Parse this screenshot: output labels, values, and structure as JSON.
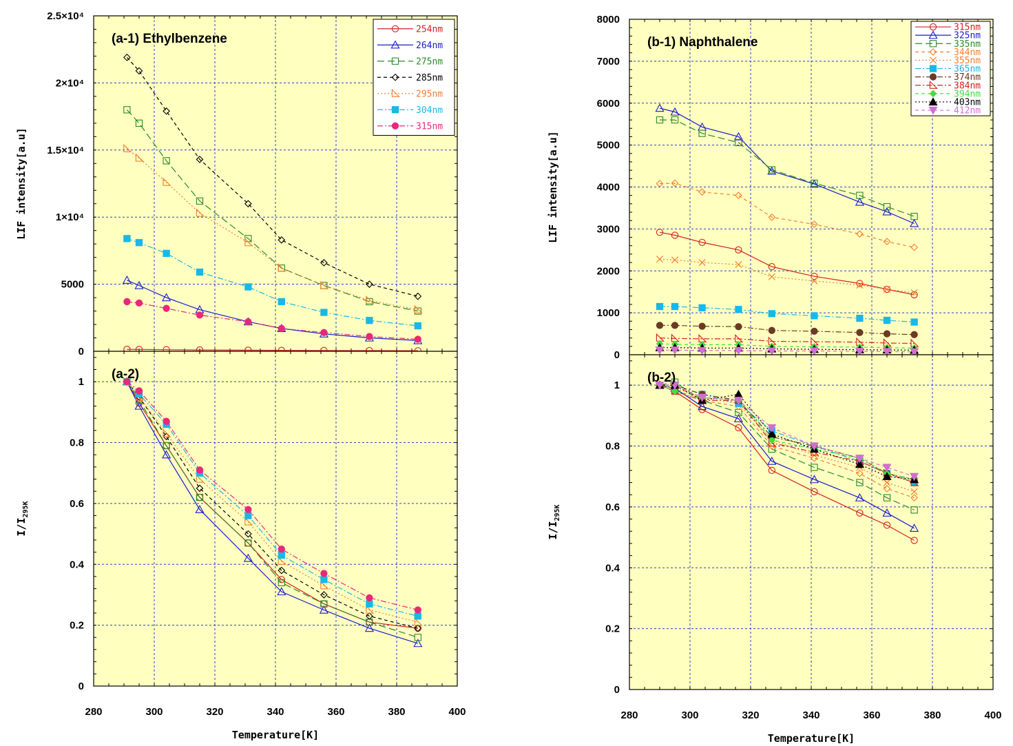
{
  "chart_data": [
    {
      "type": "line",
      "panel": "a-1",
      "title": "(a-1) Ethylbenzene",
      "xlabel": "Temperature[K]",
      "ylabel": "LIF intensity[a.u]",
      "xlim": [
        280,
        400
      ],
      "ylim": [
        0,
        25000
      ],
      "xticks": [
        "280",
        "300",
        "320",
        "340",
        "360",
        "380",
        "400"
      ],
      "yticks": [
        "0",
        "5000",
        "1×10⁴",
        "1.5×10⁴",
        "2×10⁴",
        "2.5×10⁴"
      ],
      "grid": true,
      "legend_position": "top-right",
      "x": [
        291,
        295,
        304,
        315,
        331,
        342,
        356,
        371,
        387
      ],
      "series": [
        {
          "name": "254nm",
          "color": "#d42020",
          "marker": "circle-open",
          "dash": "solid",
          "values": [
            150,
            140,
            120,
            100,
            80,
            70,
            60,
            50,
            40
          ]
        },
        {
          "name": "264nm",
          "color": "#1a1ad0",
          "marker": "triangle-open",
          "dash": "solid",
          "values": [
            5300,
            4900,
            4000,
            3100,
            2200,
            1700,
            1300,
            1000,
            800
          ]
        },
        {
          "name": "275nm",
          "color": "#2a8a2a",
          "marker": "square-open",
          "dash": "long-dash",
          "values": [
            18000,
            17000,
            14200,
            11200,
            8400,
            6200,
            4900,
            3700,
            3000
          ]
        },
        {
          "name": "285nm",
          "color": "#000000",
          "marker": "diamond-open",
          "dash": "dash",
          "values": [
            21900,
            20900,
            17900,
            14300,
            11000,
            8300,
            6600,
            5000,
            4100
          ]
        },
        {
          "name": "295nm",
          "color": "#f08030",
          "marker": "triangle-right-open",
          "dash": "dot",
          "values": [
            15100,
            14400,
            12600,
            10300,
            8100,
            6200,
            4900,
            3800,
            3100
          ]
        },
        {
          "name": "304nm",
          "color": "#18b8e8",
          "marker": "square-filled",
          "dash": "dash-dot",
          "values": [
            8400,
            8100,
            7300,
            5900,
            4800,
            3700,
            2900,
            2300,
            1900
          ]
        },
        {
          "name": "315nm",
          "color": "#e8287a",
          "marker": "circle-filled",
          "dash": "dash-dot",
          "values": [
            3700,
            3600,
            3200,
            2700,
            2200,
            1700,
            1400,
            1100,
            900
          ]
        }
      ]
    },
    {
      "type": "line",
      "panel": "a-2",
      "title": "(a-2)",
      "xlabel": "Temperature[K]",
      "ylabel": "I/I295K",
      "xlim": [
        280,
        400
      ],
      "ylim": [
        0,
        1.1
      ],
      "xticks": [
        "280",
        "300",
        "320",
        "340",
        "360",
        "380",
        "400"
      ],
      "yticks": [
        "0",
        "0.2",
        "0.4",
        "0.6",
        "0.8",
        "1"
      ],
      "grid": true,
      "x": [
        291,
        295,
        304,
        315,
        331,
        342,
        356,
        371,
        387
      ],
      "series": [
        {
          "name": "254nm",
          "values": [
            1.0,
            0.93,
            0.79,
            0.62,
            0.47,
            0.35,
            0.27,
            0.21,
            0.19
          ]
        },
        {
          "name": "264nm",
          "values": [
            1.0,
            0.92,
            0.76,
            0.58,
            0.42,
            0.31,
            0.25,
            0.19,
            0.14
          ]
        },
        {
          "name": "275nm",
          "values": [
            1.0,
            0.94,
            0.79,
            0.62,
            0.47,
            0.34,
            0.27,
            0.21,
            0.16
          ]
        },
        {
          "name": "285nm",
          "values": [
            1.0,
            0.95,
            0.82,
            0.65,
            0.5,
            0.38,
            0.3,
            0.23,
            0.19
          ]
        },
        {
          "name": "295nm",
          "values": [
            1.0,
            0.95,
            0.83,
            0.68,
            0.54,
            0.41,
            0.33,
            0.25,
            0.21
          ]
        },
        {
          "name": "304nm",
          "values": [
            1.0,
            0.96,
            0.86,
            0.7,
            0.56,
            0.43,
            0.35,
            0.27,
            0.23
          ]
        },
        {
          "name": "315nm",
          "values": [
            1.0,
            0.97,
            0.87,
            0.71,
            0.58,
            0.45,
            0.37,
            0.29,
            0.25
          ]
        }
      ]
    },
    {
      "type": "line",
      "panel": "b-1",
      "title": "(b-1) Naphthalene",
      "xlabel": "Temperature[K]",
      "ylabel": "LIF intensity[a.u]",
      "xlim": [
        280,
        400
      ],
      "ylim": [
        0,
        8000
      ],
      "xticks": [
        "280",
        "300",
        "320",
        "340",
        "360",
        "380",
        "400"
      ],
      "yticks": [
        "0",
        "1000",
        "2000",
        "3000",
        "4000",
        "5000",
        "6000",
        "7000",
        "8000"
      ],
      "grid": true,
      "legend_position": "top-right",
      "x": [
        290,
        295,
        304,
        316,
        327,
        341,
        356,
        365,
        374
      ],
      "series": [
        {
          "name": "315nm",
          "color": "#d42020",
          "marker": "circle-open",
          "dash": "solid",
          "values": [
            2920,
            2850,
            2680,
            2500,
            2100,
            1870,
            1700,
            1560,
            1430
          ]
        },
        {
          "name": "325nm",
          "color": "#1a1ad0",
          "marker": "triangle-open",
          "dash": "solid",
          "values": [
            5880,
            5790,
            5430,
            5200,
            4380,
            4070,
            3640,
            3410,
            3130
          ]
        },
        {
          "name": "335nm",
          "color": "#2a8a2a",
          "marker": "square-open",
          "dash": "long-dash",
          "values": [
            5600,
            5600,
            5280,
            5060,
            4410,
            4090,
            3800,
            3530,
            3300
          ]
        },
        {
          "name": "344nm",
          "color": "#f08030",
          "marker": "diamond-open",
          "dash": "dash",
          "values": [
            4080,
            4090,
            3880,
            3800,
            3280,
            3110,
            2880,
            2700,
            2560
          ]
        },
        {
          "name": "355nm",
          "color": "#f08030",
          "marker": "x",
          "dash": "dot",
          "values": [
            2280,
            2260,
            2200,
            2150,
            1860,
            1760,
            1660,
            1560,
            1480
          ]
        },
        {
          "name": "365nm",
          "color": "#18b8e8",
          "marker": "square-filled",
          "dash": "dash-dot",
          "values": [
            1150,
            1150,
            1120,
            1080,
            980,
            930,
            870,
            820,
            780
          ]
        },
        {
          "name": "374nm",
          "color": "#6b3a24",
          "marker": "circle-filled",
          "dash": "dash-dot",
          "values": [
            700,
            700,
            680,
            670,
            580,
            560,
            530,
            500,
            480
          ]
        },
        {
          "name": "384nm",
          "color": "#d42020",
          "marker": "triangle-right-open",
          "dash": "dash-dot",
          "values": [
            400,
            390,
            380,
            380,
            320,
            310,
            300,
            280,
            270
          ]
        },
        {
          "name": "394nm",
          "color": "#40e040",
          "marker": "diamond-filled",
          "dash": "dash",
          "values": [
            260,
            250,
            240,
            240,
            200,
            190,
            180,
            170,
            160
          ]
        },
        {
          "name": "403nm",
          "color": "#000000",
          "marker": "triangle-filled",
          "dash": "dot",
          "values": [
            170,
            170,
            160,
            160,
            140,
            130,
            120,
            115,
            110
          ]
        },
        {
          "name": "412nm",
          "color": "#d070d0",
          "marker": "triangle-down-filled",
          "dash": "dash",
          "values": [
            110,
            110,
            100,
            100,
            90,
            90,
            80,
            75,
            70
          ]
        }
      ]
    },
    {
      "type": "line",
      "panel": "b-2",
      "title": "(b-2)",
      "xlabel": "Temperature[K]",
      "ylabel": "I/I295K",
      "xlim": [
        280,
        400
      ],
      "ylim": [
        0,
        1.1
      ],
      "xticks": [
        "280",
        "300",
        "320",
        "340",
        "360",
        "380",
        "400"
      ],
      "yticks": [
        "0",
        "0.2",
        "0.4",
        "0.6",
        "0.8",
        "1"
      ],
      "grid": true,
      "x": [
        290,
        295,
        304,
        316,
        327,
        341,
        356,
        365,
        374
      ],
      "series": [
        {
          "name": "315nm",
          "values": [
            1.0,
            0.98,
            0.92,
            0.86,
            0.72,
            0.65,
            0.58,
            0.54,
            0.49
          ]
        },
        {
          "name": "325nm",
          "values": [
            1.0,
            0.99,
            0.93,
            0.89,
            0.75,
            0.69,
            0.63,
            0.58,
            0.53
          ]
        },
        {
          "name": "335nm",
          "values": [
            1.0,
            1.01,
            0.95,
            0.91,
            0.79,
            0.73,
            0.68,
            0.63,
            0.59
          ]
        },
        {
          "name": "344nm",
          "values": [
            1.0,
            1.0,
            0.95,
            0.93,
            0.8,
            0.76,
            0.71,
            0.66,
            0.63
          ]
        },
        {
          "name": "355nm",
          "values": [
            1.0,
            0.99,
            0.96,
            0.94,
            0.82,
            0.77,
            0.73,
            0.68,
            0.65
          ]
        },
        {
          "name": "365nm",
          "values": [
            1.0,
            1.0,
            0.97,
            0.94,
            0.85,
            0.8,
            0.75,
            0.71,
            0.68
          ]
        },
        {
          "name": "374nm",
          "values": [
            1.0,
            1.0,
            0.97,
            0.95,
            0.83,
            0.8,
            0.76,
            0.71,
            0.69
          ]
        },
        {
          "name": "384nm",
          "values": [
            1.0,
            0.98,
            0.95,
            0.95,
            0.81,
            0.78,
            0.75,
            0.71,
            0.68
          ]
        },
        {
          "name": "394nm",
          "values": [
            1.0,
            0.98,
            0.96,
            0.95,
            0.82,
            0.79,
            0.76,
            0.71,
            0.69
          ]
        },
        {
          "name": "403nm",
          "values": [
            1.0,
            1.0,
            0.95,
            0.97,
            0.84,
            0.79,
            0.74,
            0.7,
            0.69
          ]
        },
        {
          "name": "412nm",
          "values": [
            1.0,
            1.0,
            0.96,
            0.95,
            0.86,
            0.8,
            0.76,
            0.73,
            0.7
          ]
        }
      ]
    }
  ]
}
